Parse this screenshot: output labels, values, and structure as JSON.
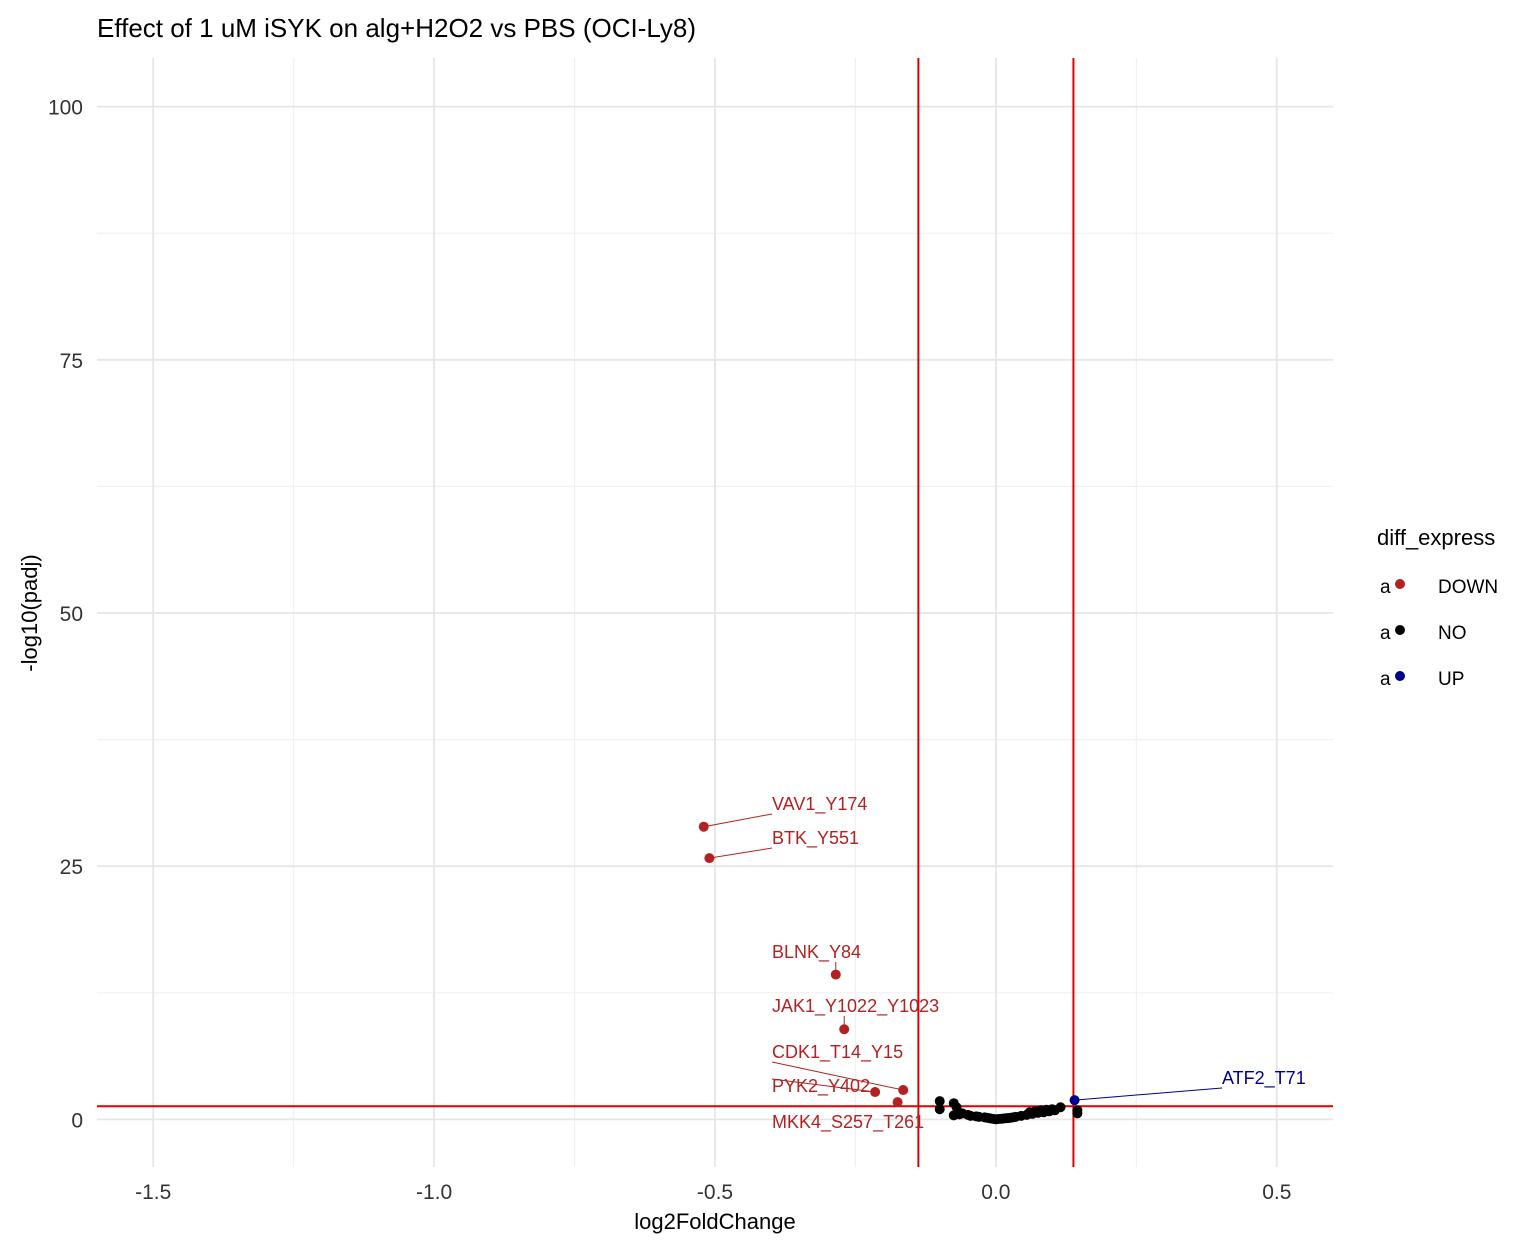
{
  "chart_data": {
    "type": "scatter",
    "title": "Effect of 1 uM iSYK on alg+H2O2 vs PBS (OCI-Ly8)",
    "xlabel": "log2FoldChange",
    "ylabel": "-log10(padj)",
    "xlim": [
      -1.6,
      0.6
    ],
    "ylim": [
      -4.7,
      104.8
    ],
    "x_ticks": [
      -1.5,
      -1.0,
      -0.5,
      0.0,
      0.5
    ],
    "x_tick_labels": [
      "-1.5",
      "-1.0",
      "-0.5",
      "0.0",
      "0.5"
    ],
    "y_ticks": [
      0,
      25,
      50,
      75,
      100
    ],
    "y_tick_labels": [
      "0",
      "25",
      "50",
      "75",
      "100"
    ],
    "grid": true,
    "threshold_lines": {
      "vertical": [
        -0.138,
        0.138
      ],
      "horizontal": [
        1.3
      ],
      "color": "#e00000"
    },
    "legend": {
      "title": "diff_express",
      "position": "right",
      "key_glyph": "a",
      "entries": [
        {
          "label": "DOWN",
          "color": "#b22222"
        },
        {
          "label": "NO",
          "color": "#000000"
        },
        {
          "label": "UP",
          "color": "#00008b"
        }
      ]
    },
    "series": [
      {
        "name": "DOWN",
        "color": "#b22222",
        "points": [
          {
            "x": -0.52,
            "y": 28.9,
            "label": "VAV1_Y174"
          },
          {
            "x": -0.51,
            "y": 25.8,
            "label": "BTK_Y551"
          },
          {
            "x": -0.285,
            "y": 14.3,
            "label": "BLNK_Y84"
          },
          {
            "x": -0.27,
            "y": 8.9,
            "label": "JAK1_Y1022_Y1023"
          },
          {
            "x": -0.165,
            "y": 2.9,
            "label": "CDK1_T14_Y15"
          },
          {
            "x": -0.215,
            "y": 2.7,
            "label": "PYK2_Y402"
          },
          {
            "x": -0.175,
            "y": 1.7,
            "label": "MKK4_S257_T261"
          }
        ]
      },
      {
        "name": "NO",
        "color": "#000000",
        "points": [
          {
            "x": -0.1,
            "y": 1.8
          },
          {
            "x": -0.1,
            "y": 1.0
          },
          {
            "x": -0.075,
            "y": 1.6
          },
          {
            "x": -0.07,
            "y": 1.2
          },
          {
            "x": -0.075,
            "y": 0.4
          },
          {
            "x": -0.065,
            "y": 0.5
          },
          {
            "x": -0.06,
            "y": 0.6
          },
          {
            "x": -0.05,
            "y": 0.45
          },
          {
            "x": -0.045,
            "y": 0.35
          },
          {
            "x": -0.035,
            "y": 0.3
          },
          {
            "x": -0.03,
            "y": 0.25
          },
          {
            "x": -0.02,
            "y": 0.2
          },
          {
            "x": -0.015,
            "y": 0.15
          },
          {
            "x": -0.01,
            "y": 0.1
          },
          {
            "x": -0.005,
            "y": 0.05
          },
          {
            "x": 0.0,
            "y": 0.02
          },
          {
            "x": 0.005,
            "y": 0.04
          },
          {
            "x": 0.01,
            "y": 0.06
          },
          {
            "x": 0.015,
            "y": 0.1
          },
          {
            "x": 0.02,
            "y": 0.12
          },
          {
            "x": 0.025,
            "y": 0.15
          },
          {
            "x": 0.03,
            "y": 0.2
          },
          {
            "x": 0.035,
            "y": 0.25
          },
          {
            "x": 0.045,
            "y": 0.35
          },
          {
            "x": 0.055,
            "y": 0.45
          },
          {
            "x": 0.06,
            "y": 0.7
          },
          {
            "x": 0.065,
            "y": 0.55
          },
          {
            "x": 0.07,
            "y": 0.8
          },
          {
            "x": 0.075,
            "y": 0.65
          },
          {
            "x": 0.08,
            "y": 0.9
          },
          {
            "x": 0.085,
            "y": 0.7
          },
          {
            "x": 0.09,
            "y": 0.95
          },
          {
            "x": 0.095,
            "y": 0.8
          },
          {
            "x": 0.1,
            "y": 1.0
          },
          {
            "x": 0.105,
            "y": 0.9
          },
          {
            "x": 0.115,
            "y": 1.2
          },
          {
            "x": 0.145,
            "y": 0.9
          },
          {
            "x": 0.145,
            "y": 0.6
          }
        ]
      },
      {
        "name": "UP",
        "color": "#00008b",
        "points": [
          {
            "x": 0.14,
            "y": 1.9,
            "label": "ATF2_T71"
          }
        ]
      }
    ]
  }
}
